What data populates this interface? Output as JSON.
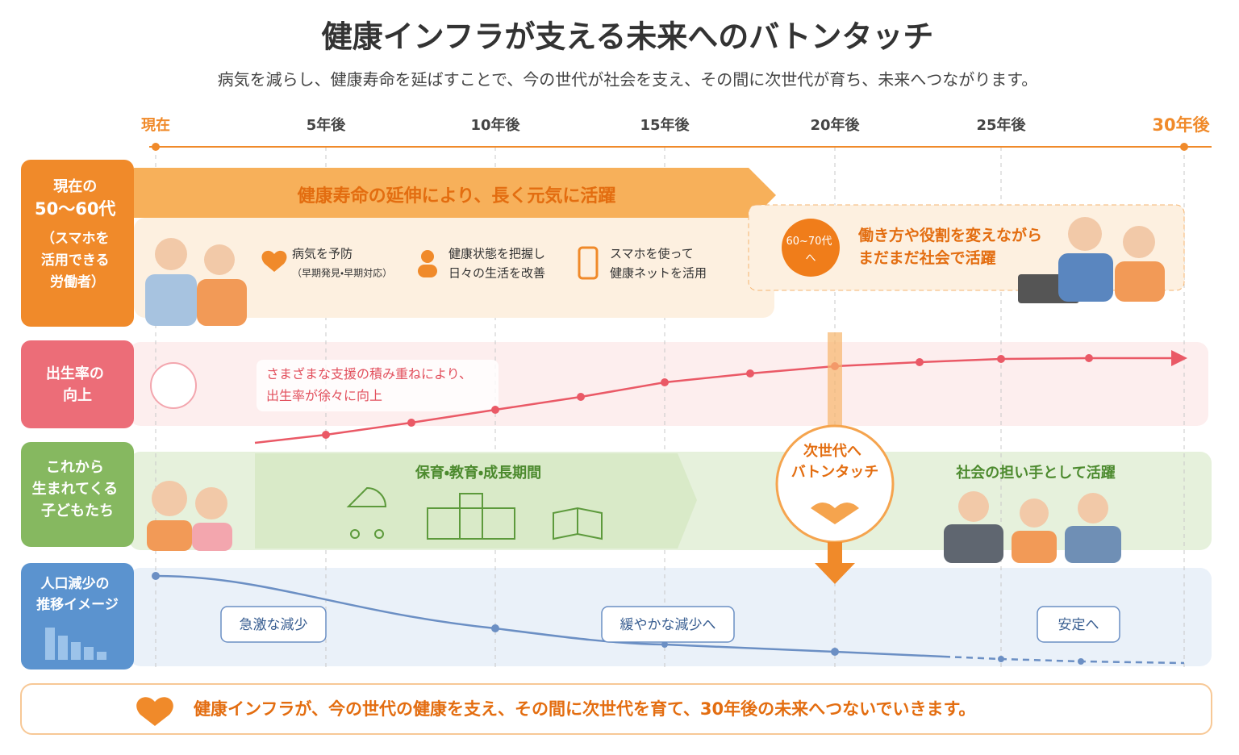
{
  "header": {
    "title": "健康インフラが支える未来へのバトンタッチ",
    "subtitle": "病気を減らし、健康寿命を延ばすことで、今の世代が社会を支え、その間に次世代が育ち、未来へつながります。"
  },
  "timeline": {
    "labels": [
      "現在",
      "5年後",
      "10年後",
      "15年後",
      "20年後",
      "25年後",
      "30年後"
    ]
  },
  "rows": [
    {
      "label": [
        "現在の",
        "50〜60代",
        "（スマホを",
        "活用できる",
        "労働者）"
      ],
      "banner": "健康寿命の延伸により、長く元気に活躍",
      "features": [
        {
          "title": "病気を予防",
          "sub": "（早期発見・早期対応）"
        },
        {
          "title": "健康状態を把握し",
          "sub": "日々の生活を改善"
        },
        {
          "title": "スマホを使って",
          "sub": "健康ネットを活用"
        }
      ],
      "badge": [
        "60~70代",
        "へ"
      ],
      "note": [
        "働き方や役割を変えながら",
        "まだまだ社会で活躍"
      ]
    },
    {
      "label": [
        "出生率の",
        "向上"
      ],
      "note": [
        "さまざまな支援の積み重ねにより、",
        "出生率が徐々に向上"
      ]
    },
    {
      "label": [
        "これから",
        "生まれてくる",
        "子どもたち"
      ],
      "phases": [
        "保育・教育・成長期間",
        "社会の担い手として活躍"
      ]
    },
    {
      "label": [
        "人口減少の",
        "推移イメージ"
      ],
      "callouts": [
        "急激な減少",
        "緩やかな減少へ",
        "安定へ"
      ]
    }
  ],
  "handoff": [
    "次世代へ",
    "バトンタッチ"
  ],
  "footer": "健康インフラが、今の世代の健康を支え、その間に次世代を育て、30年後の未来へつないでいきます。"
}
